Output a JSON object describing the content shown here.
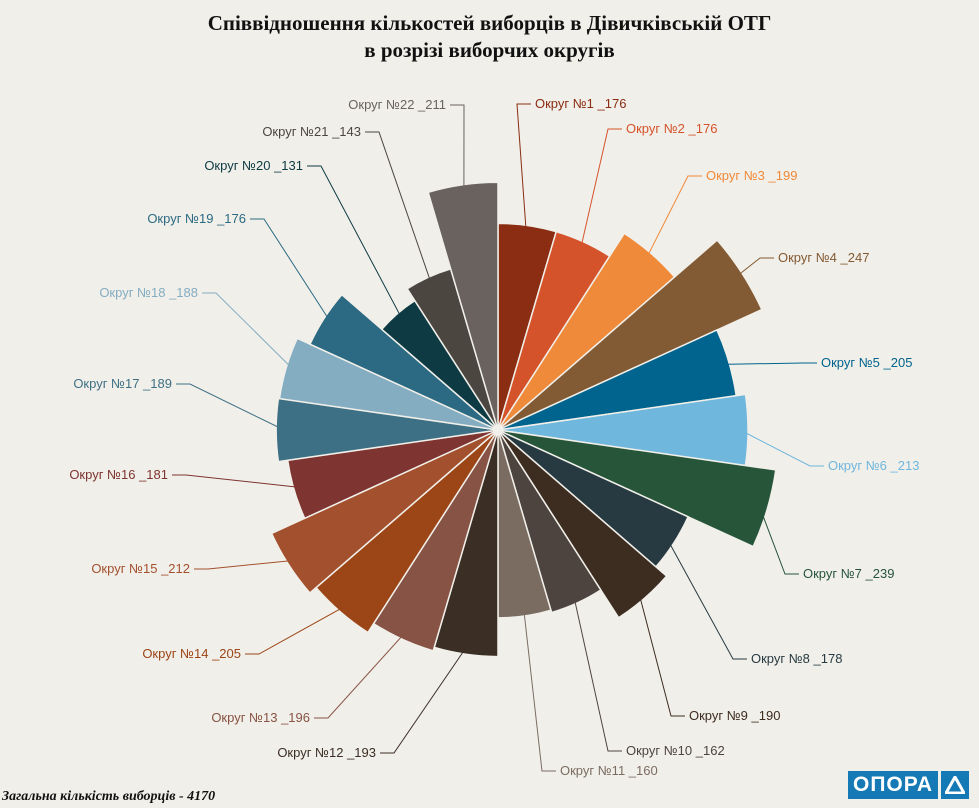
{
  "chart_data": {
    "type": "pie",
    "variant": "polar-area",
    "title": "Співвідношення кількостей виборців в Дівичківській ОТГ",
    "subtitle": "в розрізі виборчих округів",
    "total_label": "Загальна кількість виборців - 4170",
    "total": 4170,
    "series": [
      {
        "name": "Округ №1",
        "value": 176,
        "color": "#8a2d12"
      },
      {
        "name": "Округ №2",
        "value": 176,
        "color": "#d5532b"
      },
      {
        "name": "Округ №3",
        "value": 199,
        "color": "#ef8a3a"
      },
      {
        "name": "Округ №4",
        "value": 247,
        "color": "#825a33"
      },
      {
        "name": "Округ №5",
        "value": 205,
        "color": "#00648e"
      },
      {
        "name": "Округ №6",
        "value": 213,
        "color": "#6fb7dd"
      },
      {
        "name": "Округ №7",
        "value": 239,
        "color": "#26553a"
      },
      {
        "name": "Округ №8",
        "value": 178,
        "color": "#273a42"
      },
      {
        "name": "Округ №9",
        "value": 190,
        "color": "#3d2c20"
      },
      {
        "name": "Округ №10",
        "value": 162,
        "color": "#4d4440"
      },
      {
        "name": "Округ №11",
        "value": 160,
        "color": "#7b6c62"
      },
      {
        "name": "Округ №12",
        "value": 193,
        "color": "#3a2e25"
      },
      {
        "name": "Округ №13",
        "value": 196,
        "color": "#875344"
      },
      {
        "name": "Округ №14",
        "value": 205,
        "color": "#9c4516"
      },
      {
        "name": "Округ №15",
        "value": 212,
        "color": "#a3502e"
      },
      {
        "name": "Округ №16",
        "value": 181,
        "color": "#7e3431"
      },
      {
        "name": "Округ №17",
        "value": 189,
        "color": "#3e7085"
      },
      {
        "name": "Округ №18",
        "value": 188,
        "color": "#84adc2"
      },
      {
        "name": "Округ №19",
        "value": 176,
        "color": "#2b6a82"
      },
      {
        "name": "Округ №20",
        "value": 131,
        "color": "#0e3a44"
      },
      {
        "name": "Округ №21",
        "value": 143,
        "color": "#4c4641"
      },
      {
        "name": "Округ №22",
        "value": 211,
        "color": "#6a625e"
      }
    ],
    "labels": [
      "Округ №1 _176",
      "Округ №2 _176",
      "Округ №3 _199",
      "Округ №4 _247",
      "Округ №5 _205",
      "Округ №6 _213",
      "Округ №7 _239",
      "Округ №8 _178",
      "Округ №9 _190",
      "Округ №10 _162",
      "Округ №11 _160",
      "Округ №12 _193",
      "Округ №13 _196",
      "Округ №14 _205",
      "Округ №15 _212",
      "Округ №16 _181",
      "Округ №17 _189",
      "Округ №18 _188",
      "Округ №19 _176",
      "Округ №20 _131",
      "Округ №21 _143",
      "Округ №22 _211"
    ],
    "label_colors": [
      "#8a2d12",
      "#d5532b",
      "#ef8a3a",
      "#825a33",
      "#00648e",
      "#6fb7dd",
      "#26553a",
      "#273a42",
      "#3d2c20",
      "#4d4440",
      "#7b6c62",
      "#3a2e25",
      "#875344",
      "#9c4516",
      "#a3502e",
      "#7e3431",
      "#3e7085",
      "#84adc2",
      "#2b6a82",
      "#0e3a44",
      "#4c4641",
      "#6a625e"
    ]
  },
  "brand": {
    "logo_text": "ОПОРА",
    "color": "#1479b5"
  }
}
